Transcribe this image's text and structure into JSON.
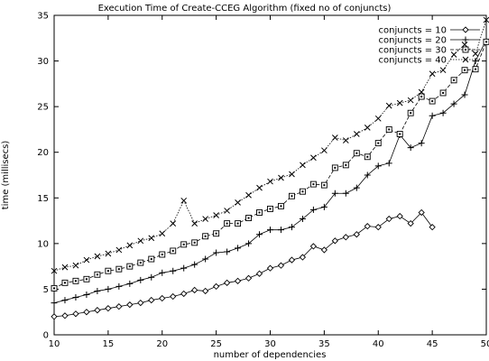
{
  "chart_data": {
    "type": "line",
    "title": "Execution Time of Create-CCEG Algorithm (fixed no of conjuncts)",
    "xlabel": "number of dependencies",
    "ylabel": "time (millisecs)",
    "xlim": [
      10,
      50
    ],
    "ylim": [
      0,
      35
    ],
    "xticks": [
      10,
      15,
      20,
      25,
      30,
      35,
      40,
      45,
      50
    ],
    "yticks": [
      0,
      5,
      10,
      15,
      20,
      25,
      30,
      35
    ],
    "legend_position": "top-right",
    "grid": false,
    "series": [
      {
        "name": "conjuncts = 10",
        "marker": "diamond",
        "dash": "solid",
        "x": [
          10,
          11,
          12,
          13,
          14,
          15,
          16,
          17,
          18,
          19,
          20,
          21,
          22,
          23,
          24,
          25,
          26,
          27,
          28,
          29,
          30,
          31,
          32,
          33,
          34,
          35,
          36,
          37,
          38,
          39,
          40,
          41,
          42,
          43,
          44,
          45
        ],
        "y": [
          2.0,
          2.1,
          2.3,
          2.5,
          2.7,
          2.9,
          3.1,
          3.3,
          3.5,
          3.8,
          4.0,
          4.2,
          4.5,
          4.9,
          4.8,
          5.3,
          5.7,
          5.9,
          6.2,
          6.7,
          7.3,
          7.6,
          8.2,
          8.5,
          9.7,
          9.3,
          10.3,
          10.7,
          11.0,
          11.9,
          11.8,
          12.7,
          13.0,
          12.2,
          13.4,
          11.8
        ]
      },
      {
        "name": "conjuncts = 20",
        "marker": "plus",
        "dash": "solid",
        "x": [
          10,
          11,
          12,
          13,
          14,
          15,
          16,
          17,
          18,
          19,
          20,
          21,
          22,
          23,
          24,
          25,
          26,
          27,
          28,
          29,
          30,
          31,
          32,
          33,
          34,
          35,
          36,
          37,
          38,
          39,
          40,
          41,
          42,
          43,
          44,
          45,
          46,
          47,
          48,
          49,
          50
        ],
        "y": [
          3.5,
          3.8,
          4.1,
          4.4,
          4.8,
          5.0,
          5.3,
          5.6,
          6.0,
          6.3,
          6.8,
          7.0,
          7.3,
          7.7,
          8.3,
          9.0,
          9.1,
          9.5,
          10.0,
          11.0,
          11.5,
          11.5,
          11.8,
          12.7,
          13.7,
          14.0,
          15.5,
          15.5,
          16.1,
          17.5,
          18.5,
          18.8,
          21.9,
          20.5,
          21.0,
          24.0,
          24.3,
          25.3,
          26.3,
          30.0,
          32.3
        ]
      },
      {
        "name": "conjuncts = 30",
        "marker": "square",
        "dash": "dashed",
        "x": [
          10,
          11,
          12,
          13,
          14,
          15,
          16,
          17,
          18,
          19,
          20,
          21,
          22,
          23,
          24,
          25,
          26,
          27,
          28,
          29,
          30,
          31,
          32,
          33,
          34,
          35,
          36,
          37,
          38,
          39,
          40,
          41,
          42,
          43,
          44,
          45,
          46,
          47,
          48,
          49,
          50
        ],
        "y": [
          5.1,
          5.7,
          5.9,
          6.1,
          6.6,
          7.0,
          7.2,
          7.5,
          7.9,
          8.3,
          8.8,
          9.2,
          9.9,
          10.1,
          10.8,
          11.1,
          12.2,
          12.2,
          12.8,
          13.4,
          13.8,
          14.1,
          15.2,
          15.7,
          16.5,
          16.4,
          18.3,
          18.6,
          19.9,
          19.5,
          21.0,
          22.5,
          22.0,
          24.3,
          26.1,
          25.6,
          26.5,
          27.9,
          29.0,
          29.1,
          32.1
        ]
      },
      {
        "name": "conjuncts = 40",
        "marker": "cross",
        "dash": "dotted",
        "x": [
          10,
          11,
          12,
          13,
          14,
          15,
          16,
          17,
          18,
          19,
          20,
          21,
          22,
          23,
          24,
          25,
          26,
          27,
          28,
          29,
          30,
          31,
          32,
          33,
          34,
          35,
          36,
          37,
          38,
          39,
          40,
          41,
          42,
          43,
          44,
          45,
          46,
          47,
          48,
          49,
          50
        ],
        "y": [
          7.0,
          7.4,
          7.6,
          8.2,
          8.6,
          8.9,
          9.3,
          9.8,
          10.3,
          10.6,
          11.1,
          12.2,
          14.7,
          12.2,
          12.7,
          13.1,
          13.6,
          14.5,
          15.3,
          16.1,
          16.8,
          17.2,
          17.6,
          18.6,
          19.4,
          20.2,
          21.6,
          21.3,
          22.0,
          22.7,
          23.7,
          25.1,
          25.4,
          25.7,
          26.6,
          28.6,
          29.0,
          30.7,
          31.8,
          30.8,
          34.5
        ]
      }
    ]
  }
}
